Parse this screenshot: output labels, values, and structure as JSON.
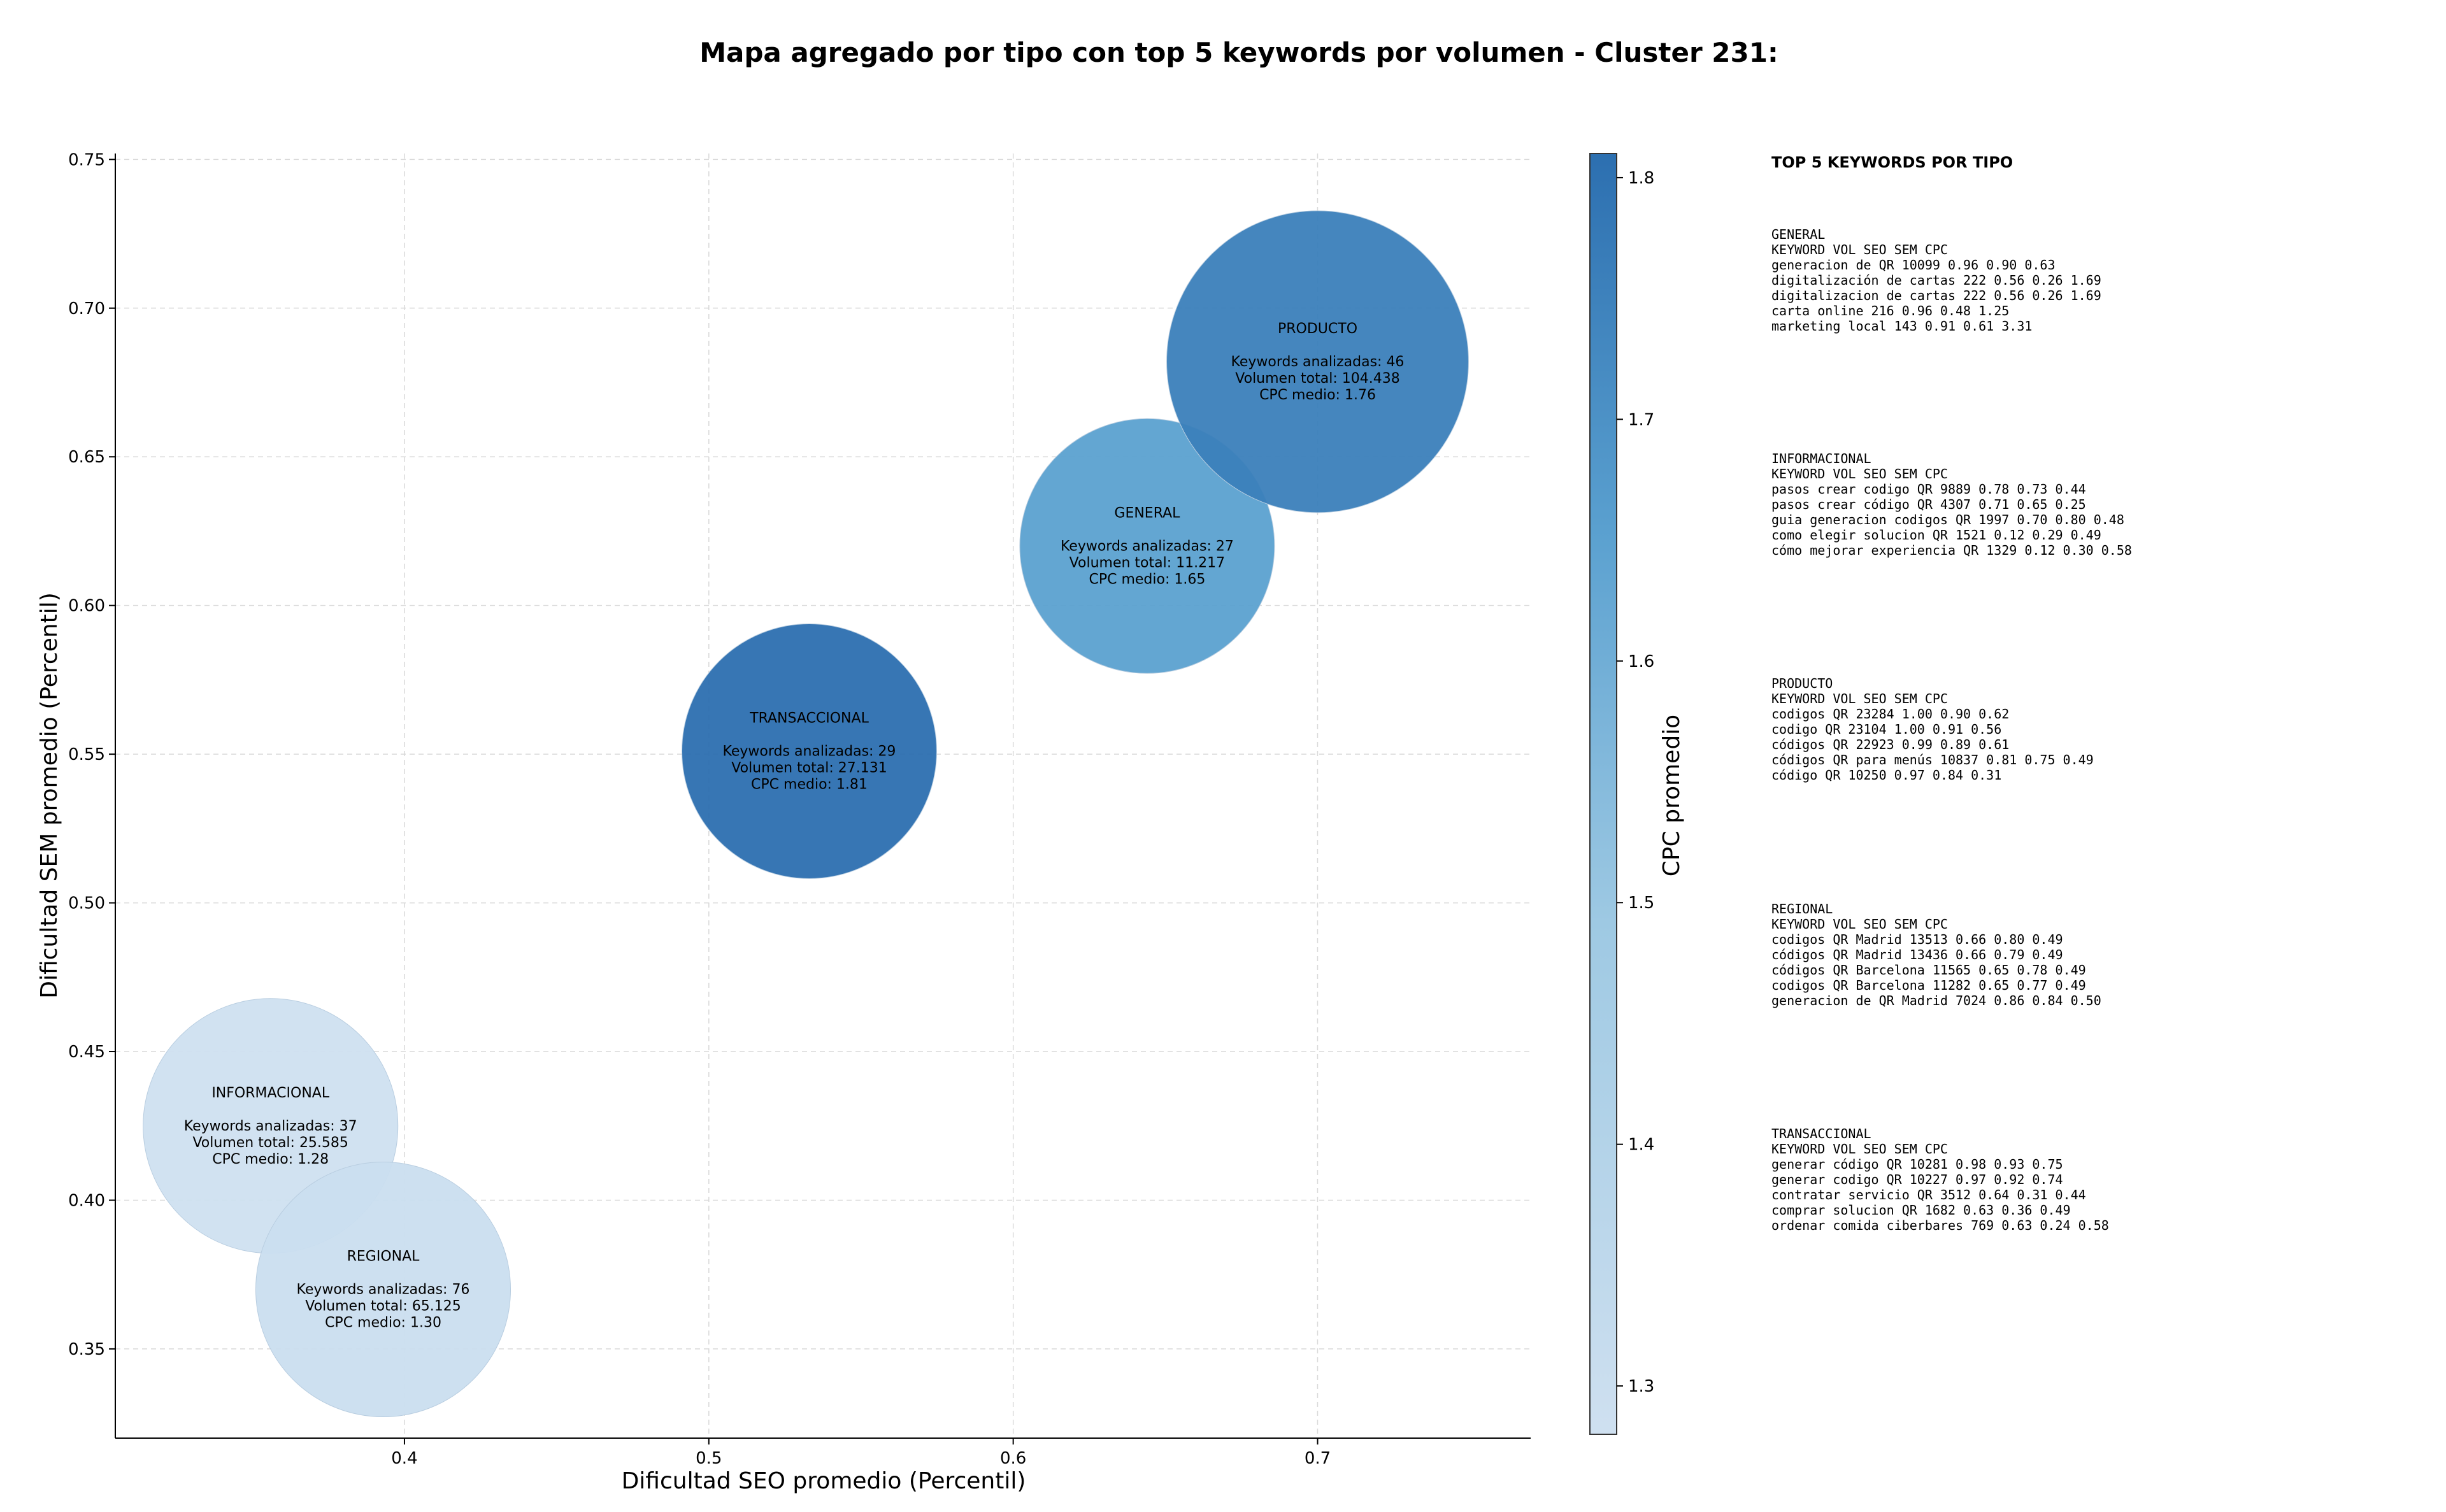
{
  "chart_data": {
    "type": "scatter",
    "title": "Mapa agregado por tipo con top 5 keywords por volumen - Cluster 231:",
    "xlabel": "Dificultad SEO promedio (Percentil)",
    "ylabel": "Dificultad SEM promedio (Percentil)",
    "xlim": [
      0.305,
      0.77
    ],
    "ylim": [
      0.32,
      0.752
    ],
    "xticks": [
      0.4,
      0.5,
      0.6,
      0.7
    ],
    "xtick_labels": [
      "0.4",
      "0.5",
      "0.6",
      "0.7"
    ],
    "yticks": [
      0.35,
      0.4,
      0.45,
      0.5,
      0.55,
      0.6,
      0.65,
      0.7,
      0.75
    ],
    "ytick_labels": [
      "0.35",
      "0.40",
      "0.45",
      "0.50",
      "0.55",
      "0.60",
      "0.65",
      "0.70",
      "0.75"
    ],
    "grid": true,
    "size_encodes": "Volumen total",
    "color_encodes": "CPC medio",
    "points": [
      {
        "name": "INFORMACIONAL",
        "x": 0.356,
        "y": 0.425,
        "keywords": 37,
        "volume": 25585,
        "cpc": 1.28,
        "lines": [
          "INFORMACIONAL",
          "",
          "Keywords analizadas: 37",
          "Volumen total: 25.585",
          "CPC medio: 1.28"
        ]
      },
      {
        "name": "REGIONAL",
        "x": 0.393,
        "y": 0.37,
        "keywords": 76,
        "volume": 65125,
        "cpc": 1.3,
        "lines": [
          "REGIONAL",
          "",
          "Keywords analizadas: 76",
          "Volumen total: 65.125",
          "CPC medio: 1.30"
        ]
      },
      {
        "name": "TRANSACCIONAL",
        "x": 0.533,
        "y": 0.551,
        "keywords": 29,
        "volume": 27131,
        "cpc": 1.81,
        "lines": [
          "TRANSACCIONAL",
          "",
          "Keywords analizadas: 29",
          "Volumen total: 27.131",
          "CPC medio: 1.81"
        ]
      },
      {
        "name": "GENERAL",
        "x": 0.644,
        "y": 0.62,
        "keywords": 27,
        "volume": 11217,
        "cpc": 1.65,
        "lines": [
          "GENERAL",
          "",
          "Keywords analizadas: 27",
          "Volumen total: 11.217",
          "CPC medio: 1.65"
        ]
      },
      {
        "name": "PRODUCTO",
        "x": 0.7,
        "y": 0.682,
        "keywords": 46,
        "volume": 104438,
        "cpc": 1.76,
        "lines": [
          "PRODUCTO",
          "",
          "Keywords analizadas: 46",
          "Volumen total: 104.438",
          "CPC medio: 1.76"
        ]
      }
    ],
    "colorbar": {
      "label": "CPC promedio",
      "min": 1.28,
      "max": 1.81,
      "ticks": [
        1.3,
        1.4,
        1.5,
        1.6,
        1.7,
        1.8
      ],
      "tick_labels": [
        "1.3",
        "1.4",
        "1.5",
        "1.6",
        "1.7",
        "1.8"
      ],
      "colormap": "Blues",
      "color_low": "#cfe0f0",
      "color_high": "#2c6fb0"
    }
  },
  "side_panel": {
    "title": "TOP 5 KEYWORDS POR TIPO",
    "blocks": [
      {
        "name": "GENERAL",
        "lines": [
          "GENERAL",
          "KEYWORD                 VOL    SEO    SEM      CPC",
          "generacion de QR      10099   0.96   0.90     0.63",
          "digitalización de cartas   222   0.56   0.26     1.69",
          "digitalizacion de cartas   222   0.56   0.26     1.69",
          "carta online            216   0.96   0.48     1.25",
          "marketing local         143   0.91   0.61     3.31"
        ]
      },
      {
        "name": "INFORMACIONAL",
        "lines": [
          "INFORMACIONAL",
          "KEYWORD                        VOL    SEO    SEM      CPC",
          "pasos crear codigo QR        9889   0.78   0.73     0.44",
          "pasos crear código QR        4307   0.71   0.65     0.25",
          "guia generacion codigos QR   1997   0.70   0.80     0.48",
          "como elegir solucion QR      1521   0.12   0.29     0.49",
          "cómo mejorar experiencia QR   1329   0.12   0.30     0.58"
        ]
      },
      {
        "name": "PRODUCTO",
        "lines": [
          "PRODUCTO",
          "KEYWORD                 VOL    SEO    SEM      CPC",
          "codigos QR            23284   1.00   0.90     0.62",
          "codigo QR             23104   1.00   0.91     0.56",
          "códigos QR            22923   0.99   0.89     0.61",
          "códigos QR para menús   10837   0.81   0.75     0.49",
          "código QR             10250   0.97   0.84     0.31"
        ]
      },
      {
        "name": "REGIONAL",
        "lines": [
          "REGIONAL",
          "KEYWORD                   VOL    SEO    SEM      CPC",
          "codigos QR Madrid       13513   0.66   0.80     0.49",
          "códigos QR Madrid       13436   0.66   0.79     0.49",
          "códigos QR Barcelona    11565   0.65   0.78     0.49",
          "codigos QR Barcelona    11282   0.65   0.77     0.49",
          "generacion de QR Madrid    7024   0.86   0.84     0.50"
        ]
      },
      {
        "name": "TRANSACCIONAL",
        "lines": [
          "TRANSACCIONAL",
          "KEYWORD                      VOL    SEO    SEM      CPC",
          "generar código QR          10281   0.98   0.93     0.75",
          "generar codigo QR          10227   0.97   0.92     0.74",
          "contratar servicio QR       3512   0.64   0.31     0.44",
          "comprar solucion QR         1682   0.63   0.36     0.49",
          "ordenar comida ciberbares    769   0.63   0.24     0.58"
        ]
      }
    ]
  }
}
